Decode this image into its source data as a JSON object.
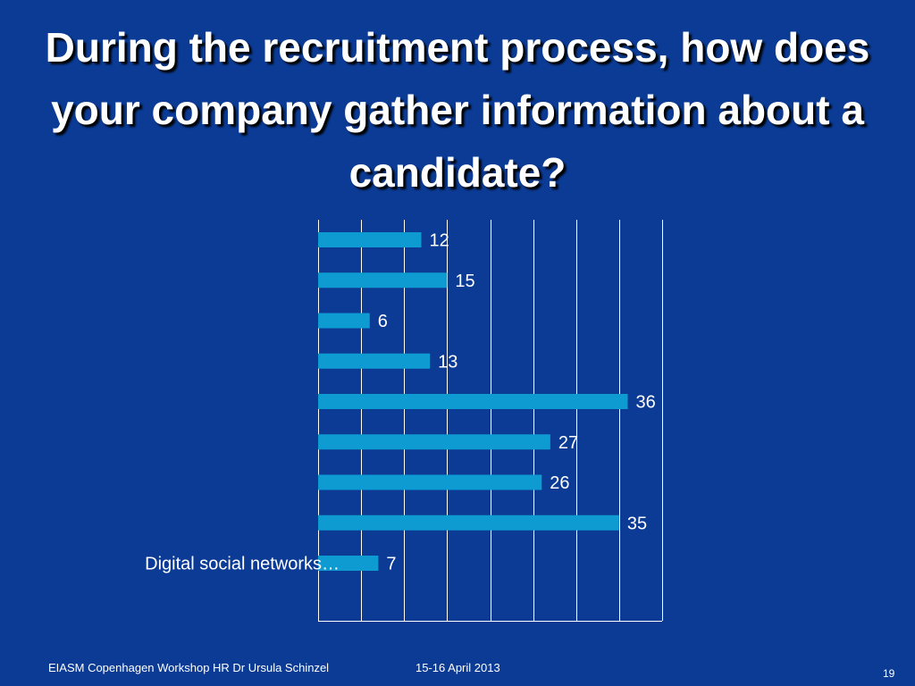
{
  "slide": {
    "title": "During the recruitment process, how does your company gather information about a candidate?",
    "footer_left": "EIASM  Copenhagen Workshop HR Dr Ursula Schinzel",
    "footer_date": "15-16 April 2013",
    "page_number": "19"
  },
  "colors": {
    "background": "#0b3b95",
    "bar": "#0e9bd2",
    "grid": "#ffffff",
    "text": "#ffffff"
  },
  "chart_data": {
    "type": "bar",
    "orientation": "horizontal",
    "categories": [
      "",
      "",
      "",
      "",
      "",
      "",
      "",
      "",
      "Digital social networks…"
    ],
    "values": [
      12,
      15,
      6,
      13,
      36,
      27,
      26,
      35,
      7
    ],
    "xlim": [
      0,
      40
    ],
    "x_tick_step": 5,
    "grid": true,
    "data_labels": true
  }
}
